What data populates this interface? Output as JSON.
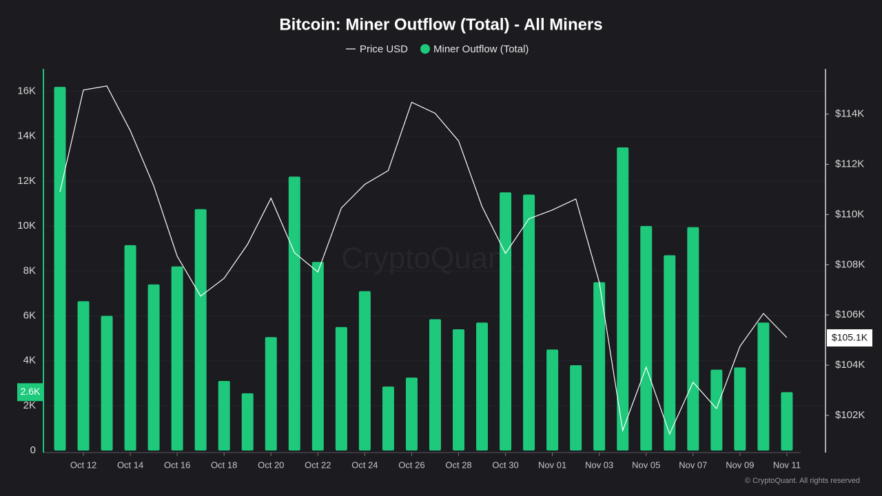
{
  "chart_data": {
    "type": "bar",
    "title": "Bitcoin: Miner Outflow (Total) - All Miners",
    "watermark": "CryptoQuant",
    "credit": "© CryptoQuant. All rights reserved",
    "categories": [
      null,
      "Oct 12",
      null,
      "Oct 14",
      null,
      "Oct 16",
      null,
      "Oct 18",
      null,
      "Oct 20",
      null,
      "Oct 22",
      null,
      "Oct 24",
      null,
      "Oct 26",
      null,
      "Oct 28",
      null,
      "Oct 30",
      null,
      "Nov 01",
      null,
      "Nov 03",
      null,
      "Nov 05",
      null,
      "Nov 07",
      null,
      "Nov 09",
      null,
      "Nov 11"
    ],
    "series": [
      {
        "name": "Price USD",
        "type": "line",
        "axis": "y2",
        "color": "#ffffff",
        "last_label": "$105.1K",
        "values": [
          110900,
          114960,
          115120,
          113340,
          111140,
          108340,
          106750,
          107460,
          108810,
          110650,
          108480,
          107710,
          110260,
          111200,
          111750,
          114470,
          114030,
          112930,
          110320,
          108450,
          109830,
          110180,
          110620,
          107300,
          101400,
          103920,
          101260,
          103320,
          102270,
          104750,
          106060,
          105100
        ]
      },
      {
        "name": "Miner Outflow (Total)",
        "type": "bar",
        "color": "#1ec97b",
        "last_label": "2.6K",
        "values": [
          16200,
          6650,
          6000,
          9150,
          7400,
          8200,
          10750,
          3100,
          2550,
          5050,
          12200,
          8400,
          5500,
          7100,
          2850,
          3250,
          5850,
          5400,
          5700,
          11500,
          11400,
          4500,
          3800,
          7500,
          13500,
          10000,
          8700,
          9950,
          3600,
          3700,
          5700,
          2600
        ]
      }
    ],
    "ylim": [
      0,
      17000
    ],
    "yticks": [
      0,
      {
        "value": 2000,
        "label": "2K"
      },
      {
        "value": 4000,
        "label": "4K"
      },
      {
        "value": 6000,
        "label": "6K"
      },
      {
        "value": 8000,
        "label": "8K"
      },
      {
        "value": 10000,
        "label": "10K"
      },
      {
        "value": 12000,
        "label": "12K"
      },
      {
        "value": 14000,
        "label": "14K"
      },
      {
        "value": 16000,
        "label": "16K"
      }
    ],
    "y2lim": [
      100600,
      115800
    ],
    "y2ticks": [
      {
        "value": 102000,
        "label": "$102K"
      },
      {
        "value": 104000,
        "label": "$104K"
      },
      {
        "value": 106000,
        "label": "$106K"
      },
      {
        "value": 108000,
        "label": "$108K"
      },
      {
        "value": 110000,
        "label": "$110K"
      },
      {
        "value": 112000,
        "label": "$112K"
      },
      {
        "value": 114000,
        "label": "$114K"
      }
    ],
    "grid": true
  }
}
